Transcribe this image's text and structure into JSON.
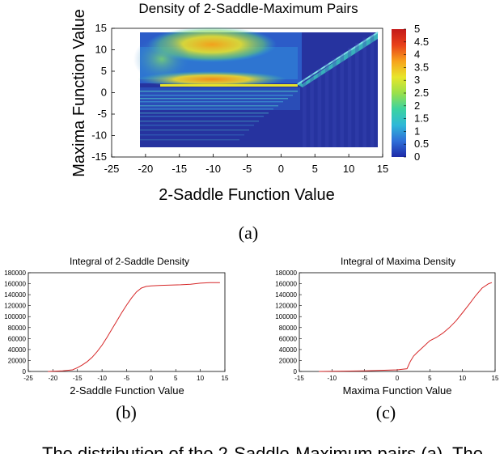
{
  "figure": {
    "sub_captions": [
      "(a)",
      "(b)",
      "(c)"
    ],
    "trailing_text": "The distribution of the 2-Saddle-Maximum pairs (a). The"
  },
  "chart_data": [
    {
      "type": "heatmap",
      "title": "Density of 2-Saddle-Maximum Pairs",
      "xlabel": "2-Saddle Function Value",
      "ylabel": "Maxima Function Value",
      "xlim": [
        -25,
        15
      ],
      "ylim": [
        -15,
        15
      ],
      "xticks": [
        "-25",
        "-20",
        "-15",
        "-10",
        "-5",
        "0",
        "5",
        "10",
        "15"
      ],
      "yticks": [
        "15",
        "10",
        "5",
        "0",
        "-5",
        "-10",
        "-15"
      ],
      "data_extent": {
        "x": [
          -21,
          13.5
        ],
        "y": [
          -12,
          14
        ]
      },
      "colorbar": {
        "range": [
          0,
          5
        ],
        "ticks": [
          "5",
          "4.5",
          "4",
          "3.5",
          "3",
          "2.5",
          "2",
          "1.5",
          "1",
          "0.5",
          "0"
        ],
        "colors": [
          "#1e2aa8",
          "#2f6fd8",
          "#2fb8d8",
          "#3cd3a0",
          "#9ae04a",
          "#e8e62a",
          "#f7a21c",
          "#e8401a",
          "#c41a1a"
        ]
      },
      "hotspots": [
        {
          "x": -8,
          "y": 10,
          "density": 4.2
        },
        {
          "x": -8,
          "y": 2.5,
          "density": 4.6
        },
        {
          "x": -14,
          "y": 6,
          "density": 2.5
        }
      ],
      "diagonal_boundary": {
        "from": [
          2,
          2
        ],
        "to": [
          13.5,
          14
        ]
      },
      "grid": false,
      "legend": "none"
    },
    {
      "type": "line",
      "title": "Integral of 2-Saddle Density",
      "xlabel": "2-Saddle Function Value",
      "ylabel": "",
      "xlim": [
        -25,
        15
      ],
      "ylim": [
        0,
        180000
      ],
      "xticks": [
        "-25",
        "-20",
        "-15",
        "-10",
        "-5",
        "0",
        "5",
        "10",
        "15"
      ],
      "yticks": [
        "180000",
        "160000",
        "140000",
        "120000",
        "100000",
        "80000",
        "60000",
        "40000",
        "20000",
        "0"
      ],
      "line_color": "#d62728",
      "x": [
        -21,
        -18,
        -16,
        -15,
        -14,
        -13,
        -12,
        -11,
        -10,
        -9,
        -8,
        -7,
        -6,
        -5,
        -4,
        -3,
        -2,
        -1,
        0,
        2,
        4,
        6,
        8,
        10,
        12,
        14
      ],
      "y": [
        0,
        1000,
        3000,
        7000,
        12000,
        18000,
        26000,
        36000,
        48000,
        62000,
        77000,
        92000,
        107000,
        121000,
        134000,
        145000,
        152000,
        155000,
        156000,
        157000,
        157500,
        158000,
        159000,
        161000,
        162000,
        162000
      ]
    },
    {
      "type": "line",
      "title": "Integral of Maxima Density",
      "xlabel": "Maxima Function Value",
      "ylabel": "",
      "xlim": [
        -15,
        15
      ],
      "ylim": [
        0,
        180000
      ],
      "xticks": [
        "-15",
        "-10",
        "-5",
        "0",
        "5",
        "10",
        "15"
      ],
      "yticks": [
        "180000",
        "160000",
        "140000",
        "120000",
        "100000",
        "80000",
        "60000",
        "40000",
        "20000",
        "0"
      ],
      "line_color": "#d62728",
      "x": [
        -12,
        -5,
        0,
        1.5,
        2,
        2.5,
        3,
        4,
        5,
        6,
        7,
        8,
        9,
        10,
        11,
        12,
        13,
        14,
        14.5
      ],
      "y": [
        0,
        1000,
        3000,
        5000,
        18000,
        28000,
        34000,
        45000,
        56000,
        62000,
        70000,
        80000,
        92000,
        107000,
        122000,
        138000,
        152000,
        160000,
        162000
      ]
    }
  ]
}
